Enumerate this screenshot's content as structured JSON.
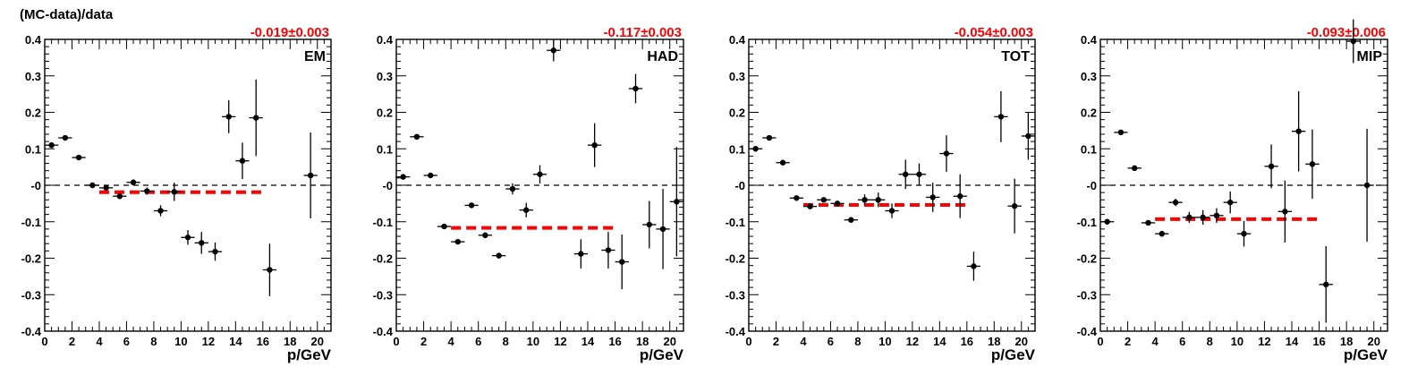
{
  "figure": {
    "ylabel": "(MC-data)/data"
  },
  "chart_data": [
    {
      "type": "scatter",
      "panel_label": "EM",
      "fit_text": "-0.019±0.003",
      "fit_value": -0.019,
      "fit_range": [
        4,
        16
      ],
      "xlabel": "p/GeV",
      "xlim": [
        0,
        21
      ],
      "ylim": [
        -0.4,
        0.4
      ],
      "x_ticks": [
        "0",
        "2",
        "4",
        "6",
        "8",
        "10",
        "12",
        "14",
        "16",
        "18",
        "20"
      ],
      "y_ticks": [
        "-0.4",
        "-0.3",
        "-0.2",
        "-0.1",
        "-0",
        "0.1",
        "0.2",
        "0.3",
        "0.4"
      ],
      "points": [
        {
          "x": 0.5,
          "y": 0.11,
          "err": 0.008
        },
        {
          "x": 1.5,
          "y": 0.13,
          "err": 0.006
        },
        {
          "x": 2.5,
          "y": 0.076,
          "err": 0.006
        },
        {
          "x": 3.5,
          "y": 0.0,
          "err": 0.005
        },
        {
          "x": 4.5,
          "y": -0.007,
          "err": 0.007
        },
        {
          "x": 5.5,
          "y": -0.03,
          "err": 0.008
        },
        {
          "x": 6.5,
          "y": 0.008,
          "err": 0.008
        },
        {
          "x": 7.5,
          "y": -0.016,
          "err": 0.01
        },
        {
          "x": 8.5,
          "y": -0.07,
          "err": 0.015
        },
        {
          "x": 9.5,
          "y": -0.018,
          "err": 0.025
        },
        {
          "x": 10.5,
          "y": -0.143,
          "err": 0.02
        },
        {
          "x": 11.5,
          "y": -0.158,
          "err": 0.03
        },
        {
          "x": 12.5,
          "y": -0.182,
          "err": 0.025
        },
        {
          "x": 13.5,
          "y": 0.188,
          "err": 0.045
        },
        {
          "x": 14.5,
          "y": 0.067,
          "err": 0.05
        },
        {
          "x": 15.5,
          "y": 0.185,
          "err": 0.105
        },
        {
          "x": 16.5,
          "y": -0.232,
          "err": 0.072
        },
        {
          "x": 19.5,
          "y": 0.027,
          "err": 0.118
        }
      ]
    },
    {
      "type": "scatter",
      "panel_label": "HAD",
      "fit_text": "-0.117±0.003",
      "fit_value": -0.117,
      "fit_range": [
        4,
        16
      ],
      "xlabel": "p/GeV",
      "xlim": [
        0,
        21
      ],
      "ylim": [
        -0.4,
        0.4
      ],
      "x_ticks": [
        "0",
        "2",
        "4",
        "6",
        "8",
        "10",
        "12",
        "14",
        "16",
        "18",
        "20"
      ],
      "y_ticks": [
        "-0.4",
        "-0.3",
        "-0.2",
        "-0.1",
        "-0",
        "0.1",
        "0.2",
        "0.3",
        "0.4"
      ],
      "points": [
        {
          "x": 0.5,
          "y": 0.023,
          "err": 0.005
        },
        {
          "x": 1.5,
          "y": 0.133,
          "err": 0.005
        },
        {
          "x": 2.5,
          "y": 0.027,
          "err": 0.005
        },
        {
          "x": 3.5,
          "y": -0.113,
          "err": 0.005
        },
        {
          "x": 4.5,
          "y": -0.155,
          "err": 0.006
        },
        {
          "x": 5.5,
          "y": -0.055,
          "err": 0.006
        },
        {
          "x": 6.5,
          "y": -0.137,
          "err": 0.008
        },
        {
          "x": 7.5,
          "y": -0.193,
          "err": 0.008
        },
        {
          "x": 8.5,
          "y": -0.01,
          "err": 0.015
        },
        {
          "x": 9.5,
          "y": -0.068,
          "err": 0.02
        },
        {
          "x": 10.5,
          "y": 0.03,
          "err": 0.025
        },
        {
          "x": 11.5,
          "y": 0.37,
          "err": 0.03
        },
        {
          "x": 13.5,
          "y": -0.188,
          "err": 0.04
        },
        {
          "x": 14.5,
          "y": 0.11,
          "err": 0.06
        },
        {
          "x": 15.5,
          "y": -0.178,
          "err": 0.05
        },
        {
          "x": 16.5,
          "y": -0.21,
          "err": 0.075
        },
        {
          "x": 17.5,
          "y": 0.265,
          "err": 0.04
        },
        {
          "x": 18.5,
          "y": -0.108,
          "err": 0.065
        },
        {
          "x": 19.5,
          "y": -0.12,
          "err": 0.11
        },
        {
          "x": 20.5,
          "y": -0.045,
          "err": 0.15
        }
      ]
    },
    {
      "type": "scatter",
      "panel_label": "TOT",
      "fit_text": "-0.054±0.003",
      "fit_value": -0.054,
      "fit_range": [
        4,
        16
      ],
      "xlabel": "p/GeV",
      "xlim": [
        0,
        21
      ],
      "ylim": [
        -0.4,
        0.4
      ],
      "x_ticks": [
        "0",
        "2",
        "4",
        "6",
        "8",
        "10",
        "12",
        "14",
        "16",
        "18",
        "20"
      ],
      "y_ticks": [
        "-0.4",
        "-0.3",
        "-0.2",
        "-0.1",
        "-0",
        "0.1",
        "0.2",
        "0.3",
        "0.4"
      ],
      "points": [
        {
          "x": 0.5,
          "y": 0.1,
          "err": 0.006
        },
        {
          "x": 1.5,
          "y": 0.13,
          "err": 0.005
        },
        {
          "x": 2.5,
          "y": 0.062,
          "err": 0.005
        },
        {
          "x": 3.5,
          "y": -0.035,
          "err": 0.005
        },
        {
          "x": 4.5,
          "y": -0.058,
          "err": 0.006
        },
        {
          "x": 5.5,
          "y": -0.04,
          "err": 0.006
        },
        {
          "x": 6.5,
          "y": -0.05,
          "err": 0.006
        },
        {
          "x": 7.5,
          "y": -0.095,
          "err": 0.008
        },
        {
          "x": 8.5,
          "y": -0.04,
          "err": 0.015
        },
        {
          "x": 9.5,
          "y": -0.04,
          "err": 0.02
        },
        {
          "x": 10.5,
          "y": -0.07,
          "err": 0.02
        },
        {
          "x": 11.5,
          "y": 0.03,
          "err": 0.04
        },
        {
          "x": 12.5,
          "y": 0.03,
          "err": 0.03
        },
        {
          "x": 13.5,
          "y": -0.033,
          "err": 0.04
        },
        {
          "x": 14.5,
          "y": 0.087,
          "err": 0.05
        },
        {
          "x": 15.5,
          "y": -0.03,
          "err": 0.06
        },
        {
          "x": 16.5,
          "y": -0.222,
          "err": 0.04
        },
        {
          "x": 18.5,
          "y": 0.188,
          "err": 0.07
        },
        {
          "x": 19.5,
          "y": -0.057,
          "err": 0.075
        },
        {
          "x": 20.5,
          "y": 0.135,
          "err": 0.065
        }
      ]
    },
    {
      "type": "scatter",
      "panel_label": "MIP",
      "fit_text": "-0.093±0.006",
      "fit_value": -0.093,
      "fit_range": [
        4,
        16
      ],
      "xlabel": "p/GeV",
      "xlim": [
        0,
        21
      ],
      "ylim": [
        -0.4,
        0.4
      ],
      "x_ticks": [
        "0",
        "2",
        "4",
        "6",
        "8",
        "10",
        "12",
        "14",
        "16",
        "18",
        "20"
      ],
      "y_ticks": [
        "-0.4",
        "-0.3",
        "-0.2",
        "-0.1",
        "-0",
        "0.1",
        "0.2",
        "0.3",
        "0.4"
      ],
      "points": [
        {
          "x": 0.5,
          "y": -0.1,
          "err": 0.006
        },
        {
          "x": 1.5,
          "y": 0.145,
          "err": 0.006
        },
        {
          "x": 2.5,
          "y": 0.047,
          "err": 0.006
        },
        {
          "x": 3.5,
          "y": -0.103,
          "err": 0.006
        },
        {
          "x": 4.5,
          "y": -0.133,
          "err": 0.008
        },
        {
          "x": 5.5,
          "y": -0.047,
          "err": 0.01
        },
        {
          "x": 6.5,
          "y": -0.088,
          "err": 0.015
        },
        {
          "x": 7.5,
          "y": -0.088,
          "err": 0.02
        },
        {
          "x": 8.5,
          "y": -0.083,
          "err": 0.02
        },
        {
          "x": 9.5,
          "y": -0.047,
          "err": 0.03
        },
        {
          "x": 10.5,
          "y": -0.133,
          "err": 0.035
        },
        {
          "x": 12.5,
          "y": 0.052,
          "err": 0.06
        },
        {
          "x": 13.5,
          "y": -0.072,
          "err": 0.085
        },
        {
          "x": 14.5,
          "y": 0.148,
          "err": 0.11
        },
        {
          "x": 15.5,
          "y": 0.058,
          "err": 0.095
        },
        {
          "x": 16.5,
          "y": -0.272,
          "err": 0.105
        },
        {
          "x": 18.5,
          "y": 0.395,
          "err": 0.06
        },
        {
          "x": 19.5,
          "y": 0.0,
          "err": 0.155
        }
      ]
    }
  ]
}
